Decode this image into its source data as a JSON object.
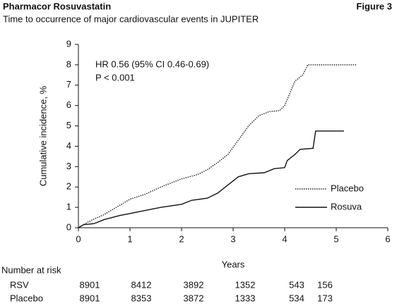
{
  "chart_data": {
    "type": "line",
    "header": "Pharmacor Rosuvastatin",
    "figure_label": "Figure 3",
    "title": "Time to occurrence of major cardiovascular events in JUPITER",
    "annotations": [
      "HR 0.56 (95% CI 0.46-0.69)",
      "P < 0.001"
    ],
    "x_label": "Years",
    "y_label": "Cumulative incidence, %",
    "xlim": [
      0,
      6
    ],
    "xticks": [
      0,
      1,
      2,
      3,
      4,
      5,
      6
    ],
    "ylim": [
      0,
      9
    ],
    "yticks": [
      0,
      1,
      2,
      3,
      4,
      5,
      6,
      7,
      8,
      9
    ],
    "legend": "lower right",
    "series": [
      {
        "name": "Placebo",
        "color": "#222",
        "dash": "dotted",
        "x": [
          0,
          0.2,
          0.5,
          0.8,
          1,
          1.3,
          1.6,
          2,
          2.3,
          2.5,
          2.7,
          2.9,
          3.1,
          3.3,
          3.5,
          3.7,
          3.9,
          4,
          4.1,
          4.2,
          4.35,
          4.45,
          5.4
        ],
        "values": [
          0,
          0.3,
          0.65,
          1.1,
          1.4,
          1.65,
          2.0,
          2.4,
          2.6,
          2.85,
          3.2,
          3.6,
          4.3,
          5.0,
          5.5,
          5.7,
          5.75,
          6.0,
          6.6,
          7.2,
          7.5,
          8.0,
          8.0
        ]
      },
      {
        "name": "Rosuva",
        "color": "#111",
        "dash": "solid",
        "x": [
          0,
          0.1,
          0.3,
          0.5,
          0.8,
          1,
          1.3,
          1.6,
          2,
          2.2,
          2.5,
          2.7,
          2.9,
          3,
          3.1,
          3.3,
          3.6,
          3.8,
          4,
          4.05,
          4.2,
          4.3,
          4.55,
          4.6,
          5.15
        ],
        "values": [
          0,
          0.15,
          0.2,
          0.4,
          0.6,
          0.7,
          0.85,
          1.0,
          1.15,
          1.35,
          1.45,
          1.7,
          2.1,
          2.3,
          2.5,
          2.65,
          2.7,
          2.9,
          2.95,
          3.3,
          3.6,
          3.85,
          3.9,
          4.75,
          4.75
        ]
      }
    ],
    "risk_table": {
      "title": "Number at risk",
      "rows": [
        {
          "label": "RSV",
          "values": [
            8901,
            8412,
            3892,
            1352,
            543,
            156
          ]
        },
        {
          "label": "Placebo",
          "values": [
            8901,
            8353,
            3872,
            1333,
            534,
            173
          ]
        }
      ]
    }
  }
}
